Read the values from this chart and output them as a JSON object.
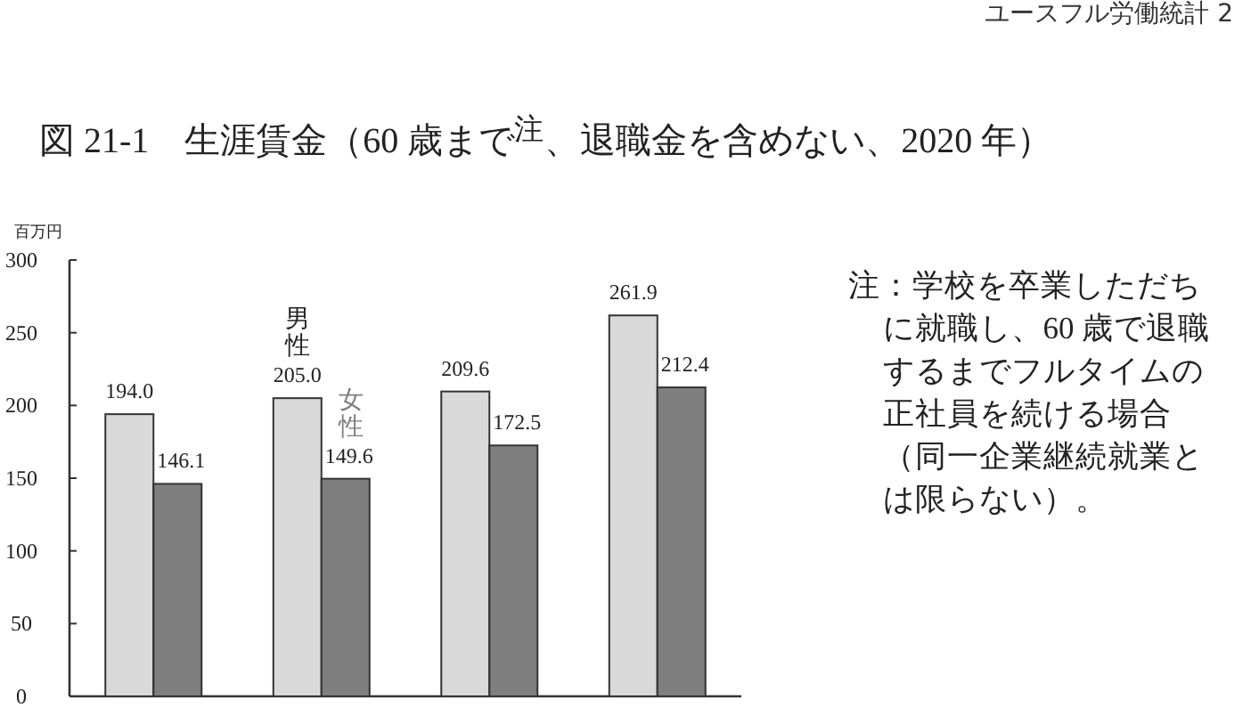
{
  "chart_data": {
    "type": "bar",
    "title": "図 21-1　生涯賃金（60 歳まで$^{注}$、退職金を含めない、2020 年）",
    "ylabel": "百万円",
    "categories": [
      null,
      null,
      null,
      null
    ],
    "series": [
      {
        "name": "男性",
        "color": "#d9d9d9",
        "values": [
          194.0,
          205.0,
          209.6,
          261.9
        ],
        "value_labels": [
          "194.0",
          "205.0",
          "209.6",
          "261.9"
        ]
      },
      {
        "name": "女性",
        "color": "#7f7f7f",
        "values": [
          146.1,
          149.6,
          172.5,
          212.4
        ],
        "value_labels": [
          "146.1",
          "149.6",
          "172.5",
          "212.4"
        ]
      }
    ],
    "ylim": [
      0,
      300
    ],
    "yticks": [
      0,
      50,
      100,
      150,
      200,
      250,
      300
    ],
    "grid": false,
    "annotations": [
      "注：学校を卒業しただちに就職し、60 歳で退職するまでフルタイムの正社員を続ける場合（同一企業継続就業とは限らない）。",
      "ユースフル労働統計 2"
    ]
  }
}
